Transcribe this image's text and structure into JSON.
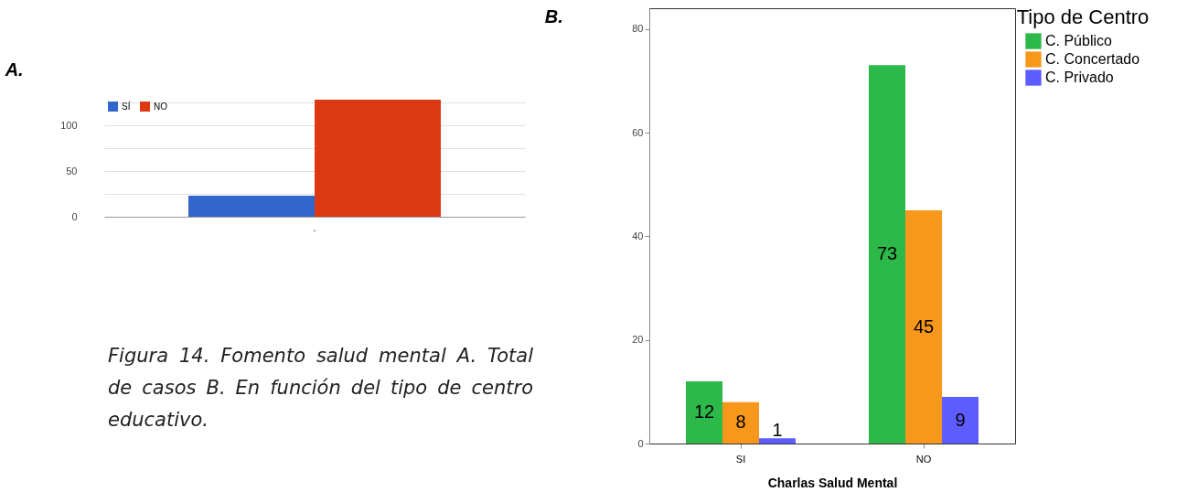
{
  "chart_data": [
    {
      "type": "bar",
      "title": "A.",
      "categories": [
        "."
      ],
      "series": [
        {
          "name": "SÍ",
          "color": "#3366cc",
          "values": [
            23
          ]
        },
        {
          "name": "NO",
          "color": "#dc3912",
          "values": [
            128
          ]
        }
      ],
      "ylim": [
        0,
        130
      ],
      "yticks": [
        0,
        {
          "value": 25,
          "label": null
        },
        50,
        {
          "value": 75,
          "label": null
        },
        100,
        {
          "value": 125,
          "label": null
        }
      ],
      "grid": true,
      "legend": "top left",
      "annotations": [
        "Figura 14. Fomento salud mental A. Total de casos B. En función del tipo de centro educativo."
      ]
    },
    {
      "type": "bar",
      "title": "B.",
      "xlabel": "Charlas Salud  Mental",
      "legend_title": "Tipo de Centro",
      "categories": [
        "SI",
        "NO"
      ],
      "series": [
        {
          "name": "C. Público",
          "color": "#2db84a",
          "values": [
            12,
            73
          ]
        },
        {
          "name": "C. Concertado",
          "color": "#f7981d",
          "values": [
            8,
            45
          ]
        },
        {
          "name": "C. Privado",
          "color": "#5d5dff",
          "values": [
            1,
            9
          ]
        }
      ],
      "ylim": [
        0,
        84
      ],
      "yticks": [
        0,
        20,
        40,
        60,
        80
      ],
      "grid": false,
      "legend": "right",
      "data_labels": true
    }
  ]
}
